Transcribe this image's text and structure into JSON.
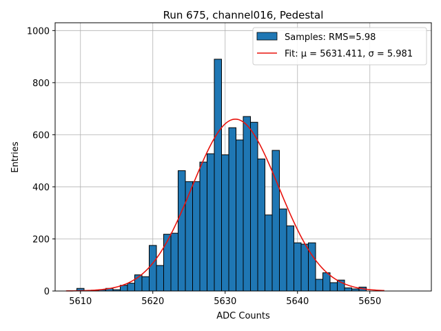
{
  "chart_data": {
    "type": "bar",
    "title": "Run 675, channel016, Pedestal",
    "xlabel": "ADC Counts",
    "ylabel": "Entries",
    "xlim": [
      5606.5,
      5658.5
    ],
    "ylim": [
      0,
      1030
    ],
    "grid": true,
    "legend_position": "top-right",
    "x_ticks": [
      5610,
      5620,
      5630,
      5640,
      5650
    ],
    "y_ticks": [
      0,
      200,
      400,
      600,
      800,
      1000
    ],
    "histogram": {
      "name": "Samples: RMS=5.98",
      "color": "#1f77b4",
      "bin_start": 5610,
      "bin_width": 1,
      "counts": [
        10,
        0,
        3,
        5,
        10,
        5,
        22,
        30,
        62,
        55,
        175,
        98,
        218,
        222,
        462,
        420,
        420,
        495,
        527,
        890,
        523,
        627,
        580,
        670,
        648,
        507,
        292,
        540,
        315,
        250,
        185,
        180,
        185,
        45,
        70,
        32,
        42,
        12,
        8,
        15
      ]
    },
    "fit": {
      "name_prefix": "Fit: ",
      "name_math": "μ = 5631.411, σ = 5.981",
      "mu": 5631.411,
      "sigma": 5.981,
      "amplitude": 660,
      "x_range": [
        5608,
        5652
      ],
      "color": "#e8120c"
    }
  }
}
